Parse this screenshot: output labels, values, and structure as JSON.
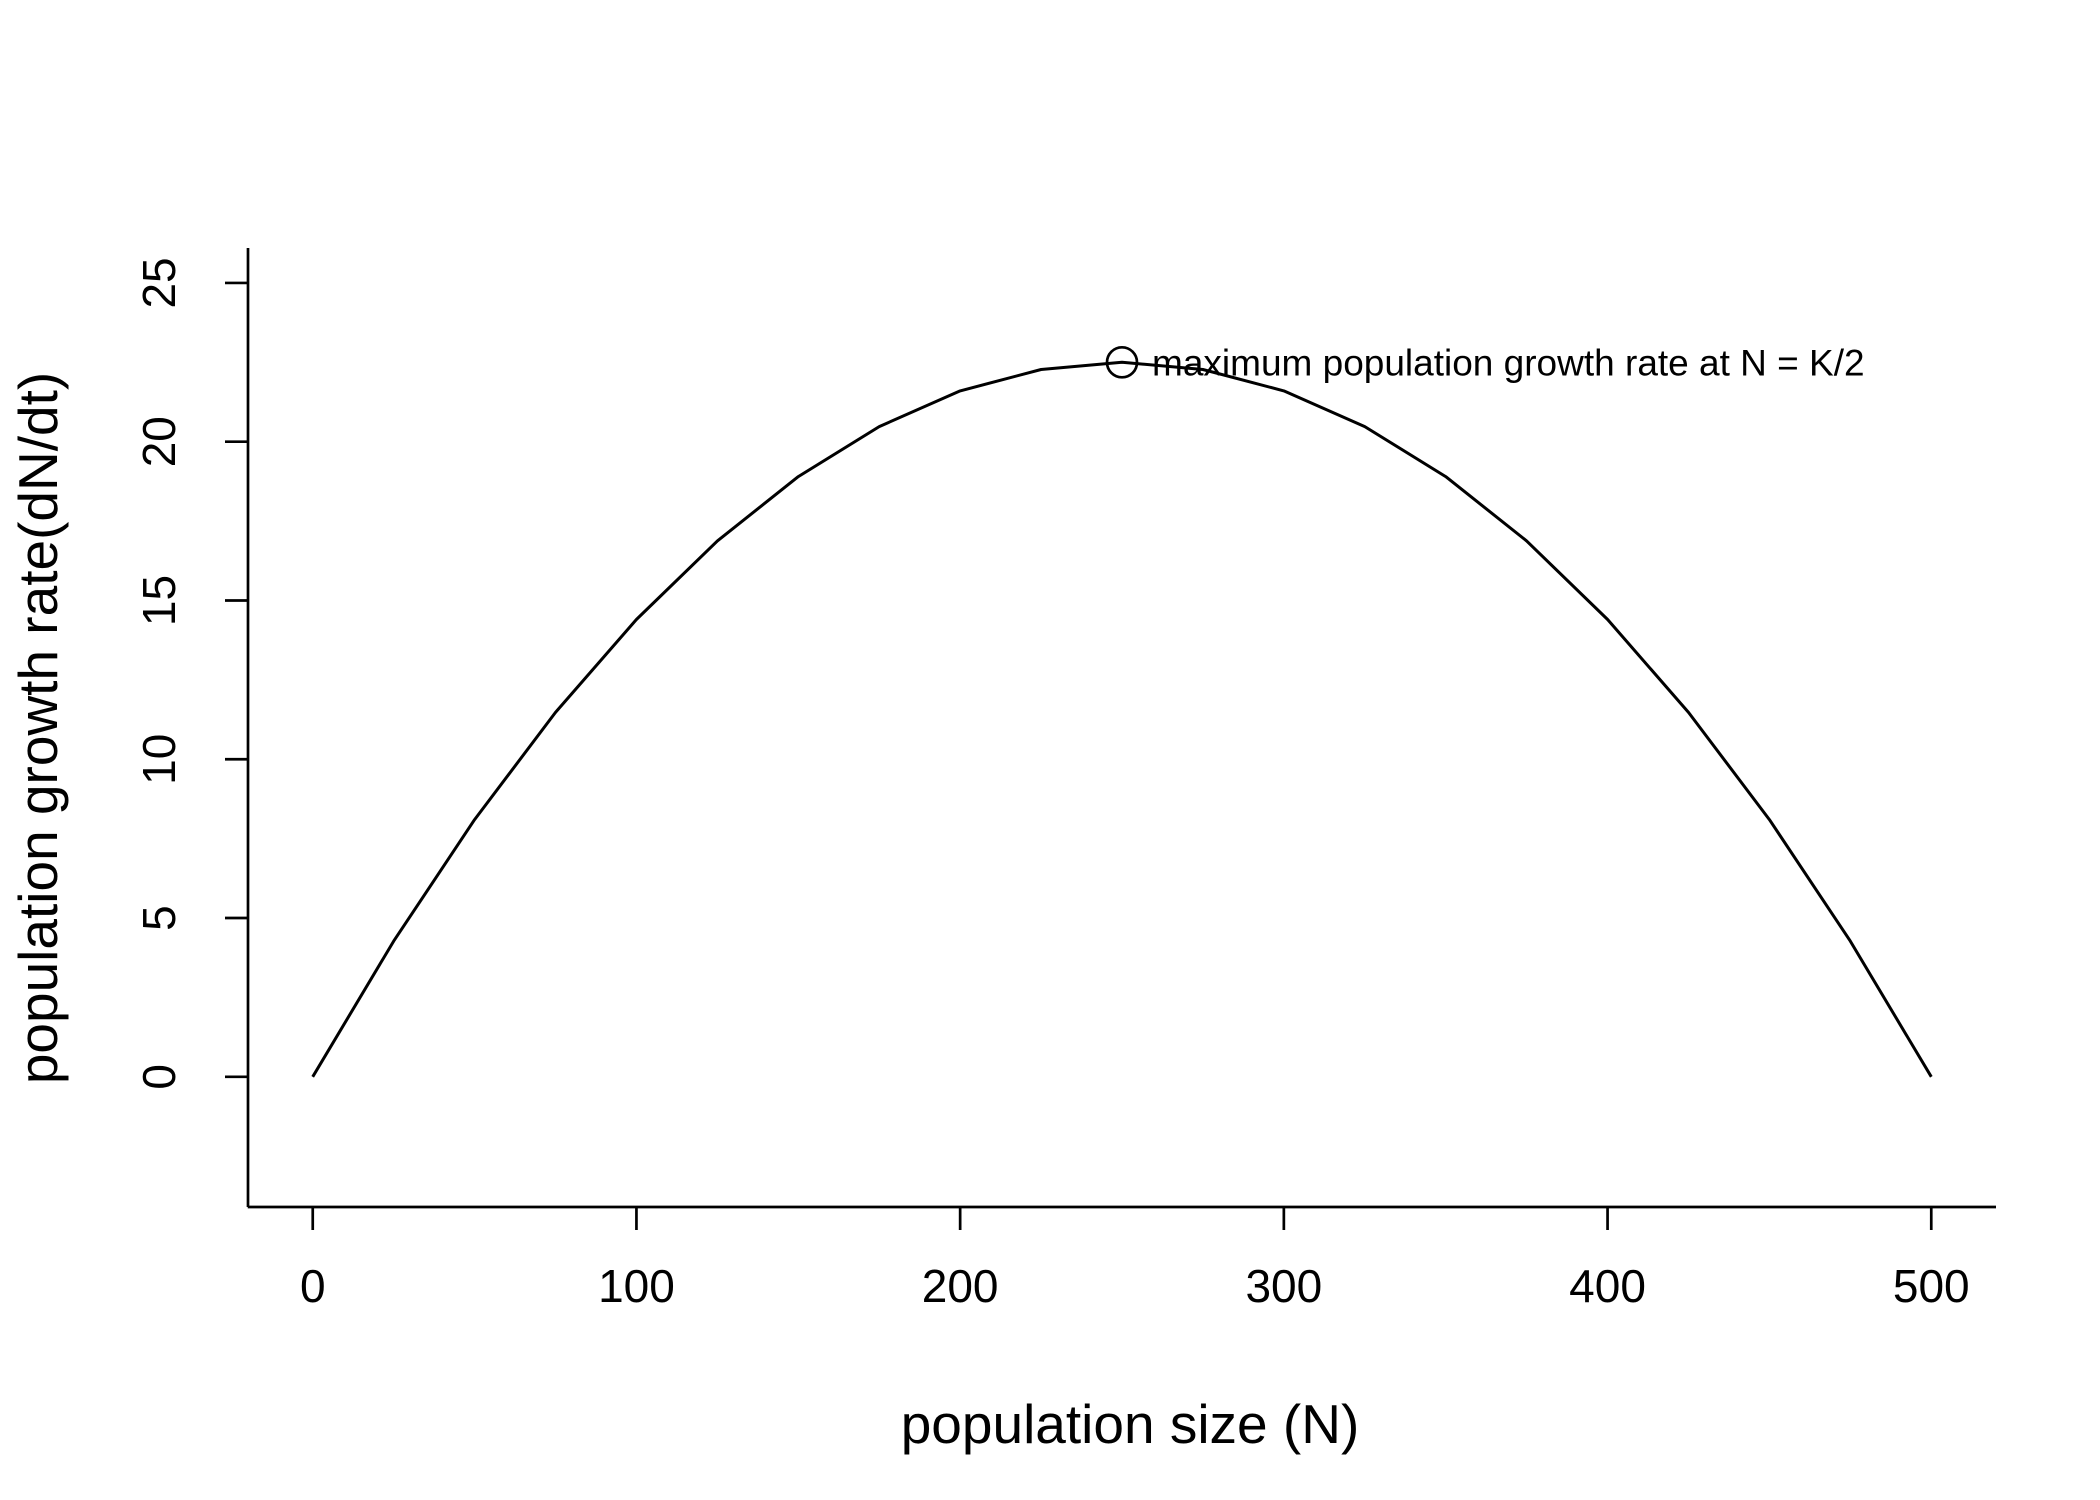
{
  "chart_data": {
    "type": "line",
    "title": "",
    "xlabel": "population size (N)",
    "ylabel": "population growth rate(dN/dt)",
    "xlim": [
      -20,
      520
    ],
    "ylim": [
      -4.1,
      26.1
    ],
    "x_ticks": [
      0,
      100,
      200,
      300,
      400,
      500
    ],
    "x_tick_labels": [
      "0",
      "100",
      "200",
      "300",
      "400",
      "500"
    ],
    "y_ticks": [
      0,
      5,
      10,
      15,
      20,
      25
    ],
    "y_tick_labels": [
      "0",
      "5",
      "10",
      "15",
      "20",
      "25"
    ],
    "grid": false,
    "line_color": "#000000",
    "series": [
      {
        "x": [
          0,
          25,
          50,
          75,
          100,
          125,
          150,
          175,
          200,
          225,
          250,
          275,
          300,
          325,
          350,
          375,
          400,
          425,
          450,
          475,
          500
        ],
        "y": [
          0,
          4.275,
          8.1,
          11.475,
          14.4,
          16.875,
          18.9,
          20.475,
          21.6,
          22.275,
          22.5,
          22.275,
          21.6,
          20.475,
          18.9,
          16.875,
          14.4,
          11.475,
          8.1,
          4.275,
          0
        ]
      }
    ],
    "annotations": [
      {
        "marker": "open-circle",
        "x": 250,
        "y": 22.5,
        "text": "maximum population growth rate at N = K/2"
      }
    ]
  }
}
